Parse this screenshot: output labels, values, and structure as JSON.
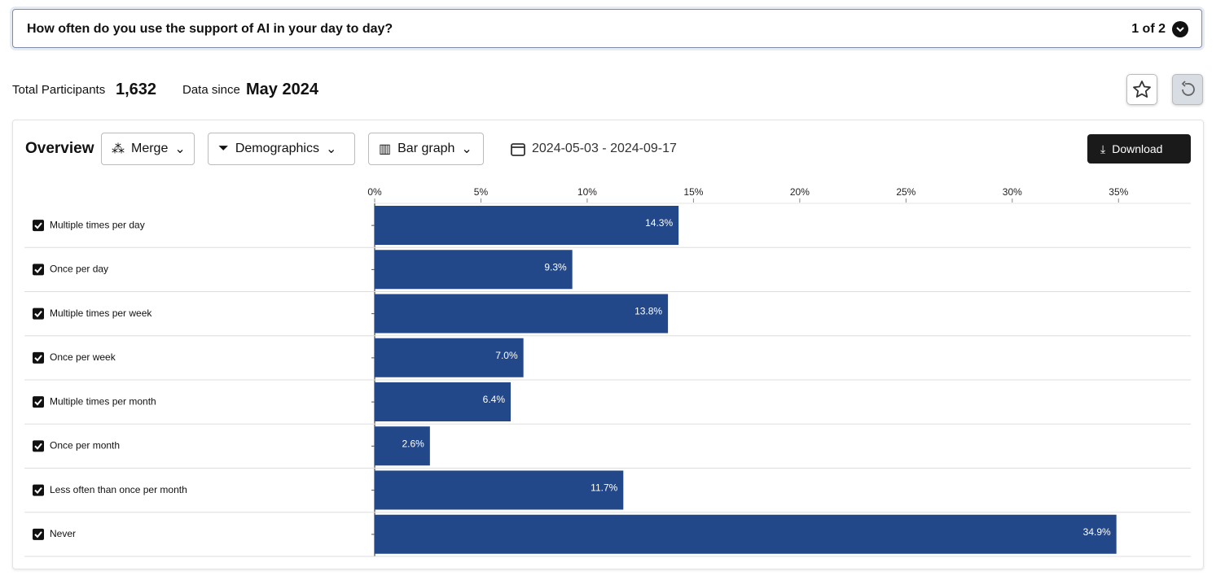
{
  "question": {
    "text": "How often do you use the support of AI in your day to day?",
    "pager": "1 of 2"
  },
  "stats": {
    "participants_label": "Total Participants",
    "participants": "1,632",
    "since_label": "Data since",
    "since": "May 2024"
  },
  "toolbar": {
    "title": "Overview",
    "merge": "Merge",
    "demographics": "Demographics",
    "graph": "Bar graph",
    "date_range": "2024-05-03 - 2024-09-17",
    "download": "Download"
  },
  "chart_data": {
    "type": "bar",
    "orientation": "horizontal",
    "categories": [
      "Multiple times per day",
      "Once per day",
      "Multiple times per week",
      "Once per week",
      "Multiple times per month",
      "Once per month",
      "Less often than once per month",
      "Never"
    ],
    "values": [
      14.3,
      9.3,
      13.8,
      7.0,
      6.4,
      2.6,
      11.7,
      34.9
    ],
    "value_labels": [
      "14.3%",
      "9.3%",
      "13.8%",
      "7.0%",
      "6.4%",
      "2.6%",
      "11.7%",
      "34.9%"
    ],
    "color": "#23488a",
    "xlim": [
      0,
      38.4
    ],
    "xticks": [
      {
        "value": 0,
        "label": "0%"
      },
      {
        "value": 5,
        "label": "5%"
      },
      {
        "value": 10,
        "label": "10%"
      },
      {
        "value": 15,
        "label": "15%"
      },
      {
        "value": 20,
        "label": "20%"
      },
      {
        "value": 25,
        "label": "25%"
      },
      {
        "value": 30,
        "label": "30%"
      },
      {
        "value": 35,
        "label": "35%"
      }
    ]
  }
}
